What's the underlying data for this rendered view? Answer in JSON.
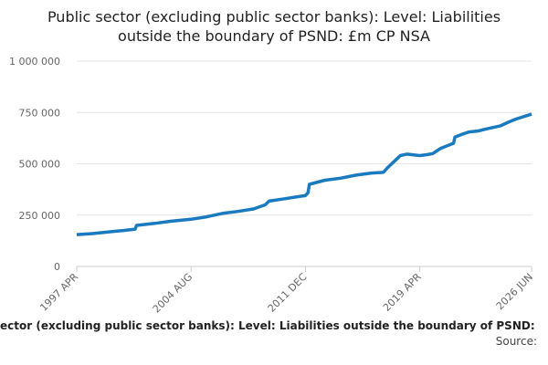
{
  "chart_data": {
    "type": "line",
    "title": "Public sector (excluding public sector banks): Level: Liabilities outside the boundary of PSND: £m CP NSA",
    "footer_title": "ector (excluding public sector banks): Level: Liabilities outside the boundary of PSND:",
    "source": "Source:",
    "x": [
      "1997 APR",
      "1998 APR",
      "1999 APR",
      "2000 APR",
      "2001 JAN",
      "2001 FEB",
      "2002 APR",
      "2003 APR",
      "2004 AUG",
      "2005 AUG",
      "2006 AUG",
      "2007 AUG",
      "2008 AUG",
      "2009 MAY",
      "2009 AUG",
      "2010 AUG",
      "2011 AUG",
      "2011 DEC",
      "2012 FEB",
      "2012 MAR",
      "2013 MAR",
      "2014 MAR",
      "2015 MAR",
      "2016 MAR",
      "2016 DEC",
      "2017 MAR",
      "2017 AUG",
      "2018 JAN",
      "2018 JUN",
      "2019 APR",
      "2019 OCT",
      "2020 FEB",
      "2020 AUG",
      "2021 FEB",
      "2021 JUN",
      "2021 JUL",
      "2022 JAN",
      "2022 JUN",
      "2023 JAN",
      "2023 JUN",
      "2024 JUN",
      "2025 JAN",
      "2025 JUN",
      "2026 JUN"
    ],
    "series": [
      {
        "name": "Liabilities outside the boundary of PSND",
        "color": "#1a7abf",
        "values": [
          155000,
          160000,
          168000,
          175000,
          182000,
          200000,
          210000,
          220000,
          230000,
          242000,
          258000,
          268000,
          280000,
          300000,
          318000,
          330000,
          342000,
          345000,
          360000,
          400000,
          420000,
          430000,
          445000,
          455000,
          458000,
          480000,
          510000,
          540000,
          547000,
          540000,
          545000,
          550000,
          575000,
          590000,
          600000,
          630000,
          645000,
          655000,
          660000,
          668000,
          685000,
          705000,
          718000,
          742000
        ]
      }
    ],
    "xticks": [
      "1997 APR",
      "2004 AUG",
      "2011 DEC",
      "2019 APR",
      "2026 JUN"
    ],
    "ylim": [
      0,
      1000000
    ],
    "yticks": [
      0,
      {
        "value": 250000,
        "label": "250 000"
      },
      {
        "value": 500000,
        "label": "500 000"
      },
      {
        "value": 750000,
        "label": "750 000"
      },
      {
        "value": 1000000,
        "label": "1 000 000"
      }
    ],
    "grid": true
  }
}
